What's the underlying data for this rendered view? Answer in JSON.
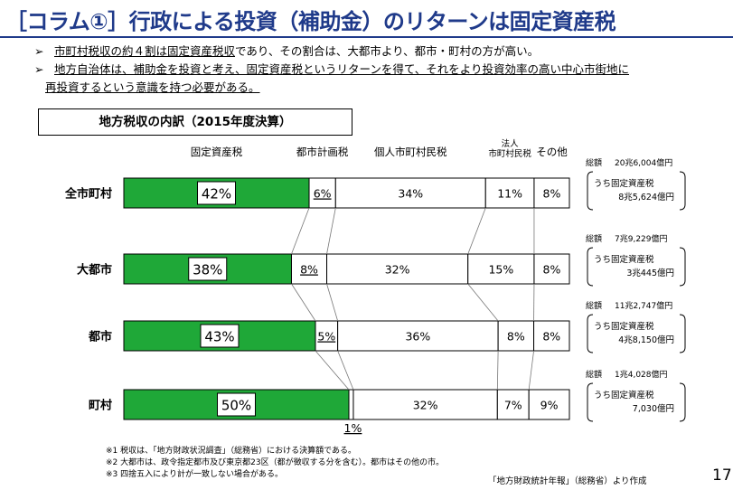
{
  "title": "［コラム①］行政による投資（補助金）のリターンは固定資産税",
  "bullets": [
    {
      "mark": "➢",
      "underlined": "市町村税収の約４割は固定資産税収",
      "rest": "であり、その割合は、大都市より、都市・町村の方が高い。"
    },
    {
      "mark": "➢",
      "line1": "地方自治体は、補助金を投資と考え、固定資産税というリターンを得て、それをより投資効率の高い中心市街地に",
      "line2": "再投資するという意識を持つ必要がある。"
    }
  ],
  "box_heading": "地方税収の内訳（2015年度決算）",
  "colors": {
    "green": "#1fa838",
    "title": "#1f3a8a",
    "border": "#000000"
  },
  "chart_data": {
    "type": "bar",
    "orientation": "horizontal-stacked-percent",
    "column_headers": [
      "固定資産税",
      "都市計画税",
      "個人市町村民税",
      "法人\n市町村民税",
      "その他"
    ],
    "categories": [
      "全市町村",
      "大都市",
      "都市",
      "町村"
    ],
    "series": [
      {
        "name": "固定資産税",
        "values": [
          42,
          38,
          43,
          50
        ]
      },
      {
        "name": "都市計画税",
        "values": [
          6,
          8,
          5,
          1
        ]
      },
      {
        "name": "個人市町村民税",
        "values": [
          34,
          32,
          36,
          32
        ]
      },
      {
        "name": "法人市町村民税",
        "values": [
          11,
          15,
          8,
          7
        ]
      },
      {
        "name": "その他",
        "values": [
          8,
          8,
          8,
          9
        ]
      }
    ],
    "labels": [
      [
        "42%",
        "6%",
        "34%",
        "11%",
        "8%"
      ],
      [
        "38%",
        "8%",
        "32%",
        "15%",
        "8%"
      ],
      [
        "43%",
        "5%",
        "36%",
        "8%",
        "8%"
      ],
      [
        "50%",
        "1%",
        "32%",
        "7%",
        "9%"
      ]
    ],
    "totals": [
      {
        "total_label": "総額",
        "total_value": "20兆6,004億円",
        "sub_label": "うち固定資産税",
        "sub_value": "8兆5,624億円"
      },
      {
        "total_label": "総額",
        "total_value": "7兆9,229億円",
        "sub_label": "うち固定資産税",
        "sub_value": "3兆445億円"
      },
      {
        "total_label": "総額",
        "total_value": "11兆2,747億円",
        "sub_label": "うち固定資産税",
        "sub_value": "4兆8,150億円"
      },
      {
        "total_label": "総額",
        "total_value": "1兆4,028億円",
        "sub_label": "うち固定資産税",
        "sub_value": "7,030億円"
      }
    ]
  },
  "footnotes": [
    "※1 税収は、「地方財政状況調査」（総務省）における決算額である。",
    "※2 大都市は、政令指定都市及び東京都23区（都が徴収する分を含む）。都市はその他の市。",
    "※3 四捨五入により計が一致しない場合がある。"
  ],
  "source": "「地方財政統計年報」（総務省）より作成",
  "page_number": "17"
}
